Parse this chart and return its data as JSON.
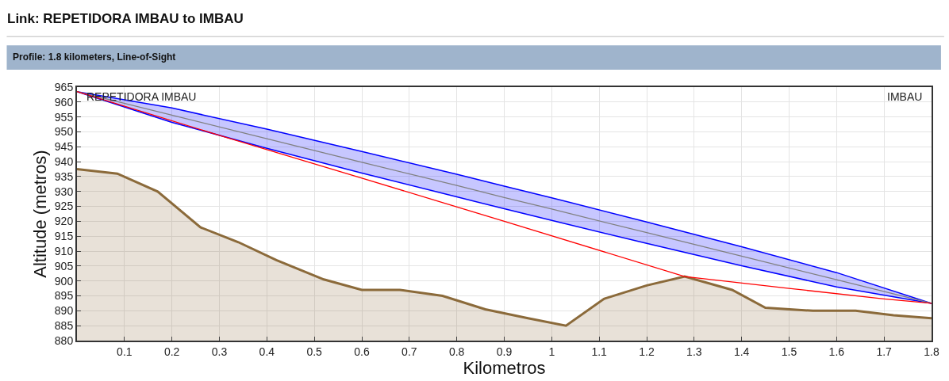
{
  "chart_data": {
    "type": "line",
    "title": "Link: REPETIDORA IMBAU to IMBAU",
    "subtitle": "Profile: 1.8 kilometers, Line-of-Sight",
    "xlabel": "Kilometros",
    "ylabel": "Altitude (metros)",
    "annotations": [
      "REPETIDORA IMBAU",
      "IMBAU"
    ],
    "series": [
      {
        "type": "area",
        "color": "#8b6a3a",
        "x": [
          0,
          0.085,
          0.17,
          0.26,
          0.34,
          0.42,
          0.52,
          0.6,
          0.68,
          0.77,
          0.86,
          0.95,
          1.03,
          1.11,
          1.2,
          1.28,
          1.38,
          1.45,
          1.55,
          1.64,
          1.72,
          1.8
        ],
        "values": [
          937.5,
          936,
          930,
          918,
          913,
          907,
          900.5,
          897,
          897,
          895,
          890.5,
          887.5,
          885,
          894,
          898.5,
          901.5,
          897,
          891,
          890,
          890,
          888.5,
          887.5
        ]
      },
      {
        "color": "#808080",
        "x": [
          0,
          0.2,
          0.4,
          0.6,
          0.8,
          0.9,
          1.0,
          1.2,
          1.4,
          1.6,
          1.8
        ],
        "values": [
          963.5,
          955.6,
          947.7,
          939.8,
          932,
          928,
          924.1,
          916.2,
          908.3,
          900.4,
          892.5
        ],
        "lower": [
          963.5,
          953.2,
          944.5,
          936.2,
          928.2,
          924.2,
          920.3,
          912.6,
          905.1,
          898,
          892.5
        ],
        "upper": [
          963.5,
          958,
          950.9,
          943.4,
          935.8,
          931.8,
          927.9,
          919.8,
          911.5,
          902.8,
          892.5
        ]
      },
      {
        "color": "#ff0000",
        "x": [
          0,
          0.3,
          0.6,
          0.9,
          1.28,
          1.5,
          1.7,
          1.8
        ],
        "values": [
          963.5,
          948.8,
          934.5,
          920,
          901.5,
          897.5,
          894,
          892.5
        ]
      }
    ],
    "xlim": [
      0,
      1.8
    ],
    "xticks": [
      0.1,
      0.2,
      0.3,
      0.4,
      0.5,
      0.6,
      0.7,
      0.8,
      0.9,
      1,
      1.1,
      1.2,
      1.3,
      1.4,
      1.5,
      1.6,
      1.7,
      1.8
    ],
    "ylim": [
      880,
      965
    ],
    "yticks": [
      880,
      885,
      890,
      895,
      900,
      905,
      910,
      915,
      920,
      925,
      930,
      935,
      940,
      945,
      950,
      955,
      960,
      965
    ],
    "grid": true,
    "marker": "none",
    "line_style": "solid"
  }
}
